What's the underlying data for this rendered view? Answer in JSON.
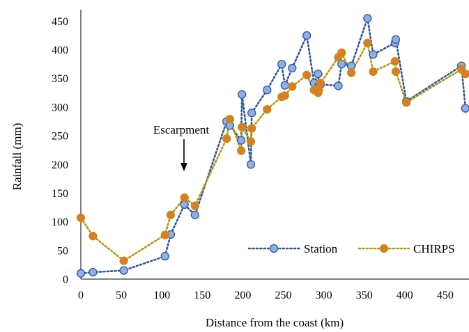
{
  "chart_data": {
    "type": "line",
    "title": "",
    "xlabel": "Distance from the coast (km)",
    "ylabel": "Rainfall (mm)",
    "xlim": [
      0,
      480
    ],
    "ylim": [
      0,
      470
    ],
    "xticks": [
      0,
      50,
      100,
      150,
      200,
      250,
      300,
      350,
      400,
      450
    ],
    "yticks": [
      0,
      50,
      100,
      150,
      200,
      250,
      300,
      350,
      400,
      450
    ],
    "grid": false,
    "legend_position": "bottom-right",
    "annotation": {
      "text": "Escarpment",
      "x": 129,
      "y": 130
    },
    "series": [
      {
        "name": "Station",
        "color": "#2f55a4",
        "marker_fill": "#8fb0e0",
        "line_style": "dotted",
        "points": [
          [
            0,
            10
          ],
          [
            15,
            12
          ],
          [
            53,
            15
          ],
          [
            104,
            40
          ],
          [
            111,
            78
          ],
          [
            128,
            130
          ],
          [
            141,
            112
          ],
          [
            180,
            275
          ],
          [
            184,
            268
          ],
          [
            198,
            242
          ],
          [
            199,
            322
          ],
          [
            210,
            200
          ],
          [
            211,
            290
          ],
          [
            230,
            330
          ],
          [
            248,
            375
          ],
          [
            252,
            338
          ],
          [
            261,
            368
          ],
          [
            279,
            425
          ],
          [
            288,
            342
          ],
          [
            293,
            358
          ],
          [
            294,
            338
          ],
          [
            296,
            340
          ],
          [
            318,
            337
          ],
          [
            322,
            375
          ],
          [
            334,
            372
          ],
          [
            354,
            455
          ],
          [
            361,
            392
          ],
          [
            388,
            412
          ],
          [
            389,
            418
          ],
          [
            402,
            310
          ],
          [
            470,
            372
          ],
          [
            475,
            298
          ]
        ]
      },
      {
        "name": "CHIRPS",
        "color": "#b8960a",
        "marker_fill": "#e07a28",
        "line_style": "dotted",
        "points": [
          [
            0,
            107
          ],
          [
            15,
            75
          ],
          [
            53,
            32
          ],
          [
            104,
            77
          ],
          [
            111,
            112
          ],
          [
            128,
            142
          ],
          [
            141,
            128
          ],
          [
            180,
            245
          ],
          [
            184,
            279
          ],
          [
            198,
            224
          ],
          [
            199,
            265
          ],
          [
            210,
            240
          ],
          [
            211,
            263
          ],
          [
            230,
            296
          ],
          [
            248,
            318
          ],
          [
            252,
            320
          ],
          [
            261,
            336
          ],
          [
            279,
            356
          ],
          [
            288,
            330
          ],
          [
            293,
            325
          ],
          [
            294,
            330
          ],
          [
            296,
            342
          ],
          [
            318,
            387
          ],
          [
            322,
            395
          ],
          [
            334,
            360
          ],
          [
            354,
            412
          ],
          [
            361,
            362
          ],
          [
            388,
            380
          ],
          [
            389,
            362
          ],
          [
            402,
            308
          ],
          [
            470,
            366
          ],
          [
            475,
            358
          ]
        ]
      }
    ]
  }
}
